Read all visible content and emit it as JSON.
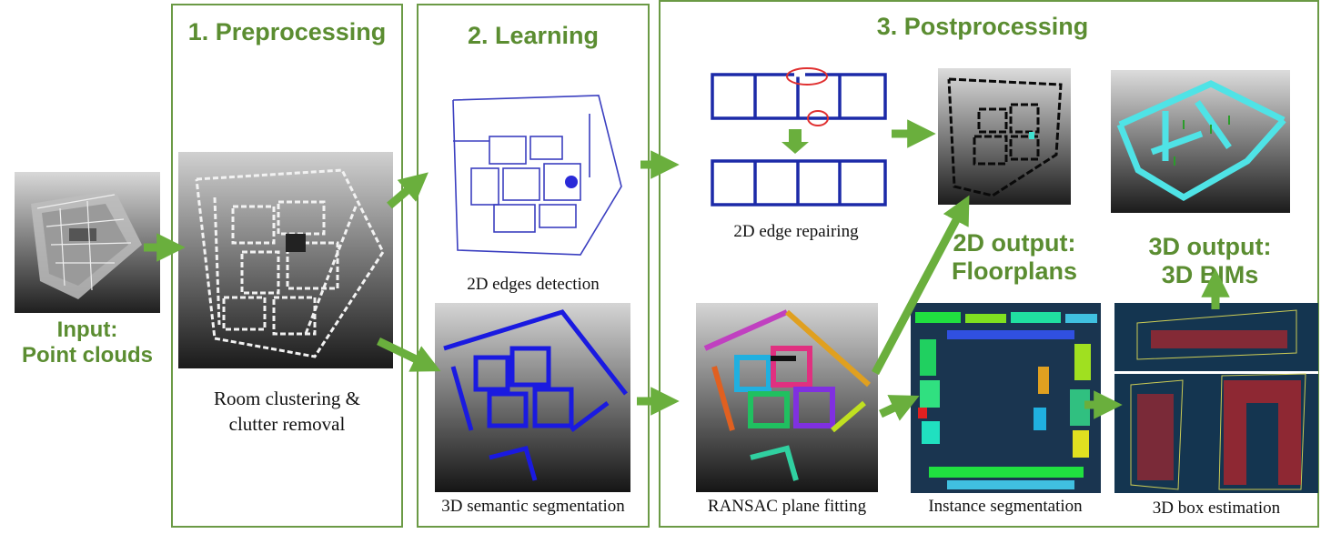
{
  "input": {
    "line1": "Input:",
    "line2": "Point clouds"
  },
  "stages": {
    "preprocessing": {
      "title": "1. Preprocessing",
      "caption_line1": "Room clustering &",
      "caption_line2": "clutter removal"
    },
    "learning": {
      "title": "2. Learning",
      "edges_caption": "2D edges detection",
      "semantic_caption": "3D semantic segmentation"
    },
    "postprocessing": {
      "title": "3. Postprocessing",
      "edge_repair_caption": "2D edge repairing",
      "ransac_caption": "RANSAC plane fitting",
      "instance_caption": "Instance segmentation",
      "box_caption": "3D box estimation"
    }
  },
  "outputs": {
    "floorplans": {
      "line1": "2D output:",
      "line2": "Floorplans"
    },
    "bims": {
      "line1": "3D output:",
      "line2": "3D BIMs"
    }
  },
  "colors": {
    "accent": "#5b8d31",
    "arrow": "#6aaf3d",
    "border": "#6b9a45",
    "wall_blue": "#1c2aa8",
    "repair_circle": "#e03030",
    "bim_cyan": "#4fe3e6",
    "box_points": "#e02020"
  }
}
